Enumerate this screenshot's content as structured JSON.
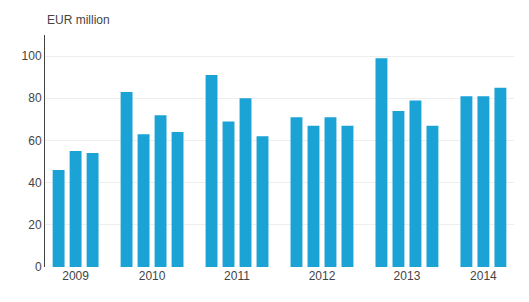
{
  "chart_data": {
    "type": "bar",
    "ylabel": "EUR million",
    "categories": [
      "2009",
      "2009",
      "2009",
      "2010",
      "2010",
      "2010",
      "2010",
      "2011",
      "2011",
      "2011",
      "2011",
      "2012",
      "2012",
      "2012",
      "2012",
      "2013",
      "2013",
      "2013",
      "2013",
      "2014",
      "2014",
      "2014"
    ],
    "values": [
      46,
      55,
      54,
      83,
      63,
      72,
      64,
      91,
      69,
      80,
      62,
      71,
      67,
      71,
      67,
      99,
      74,
      79,
      67,
      81,
      81,
      85
    ],
    "color": "#1aa3d4",
    "ylim": [
      0,
      110
    ],
    "yticks": [
      0,
      20,
      40,
      60,
      80,
      100
    ],
    "grid": true
  }
}
